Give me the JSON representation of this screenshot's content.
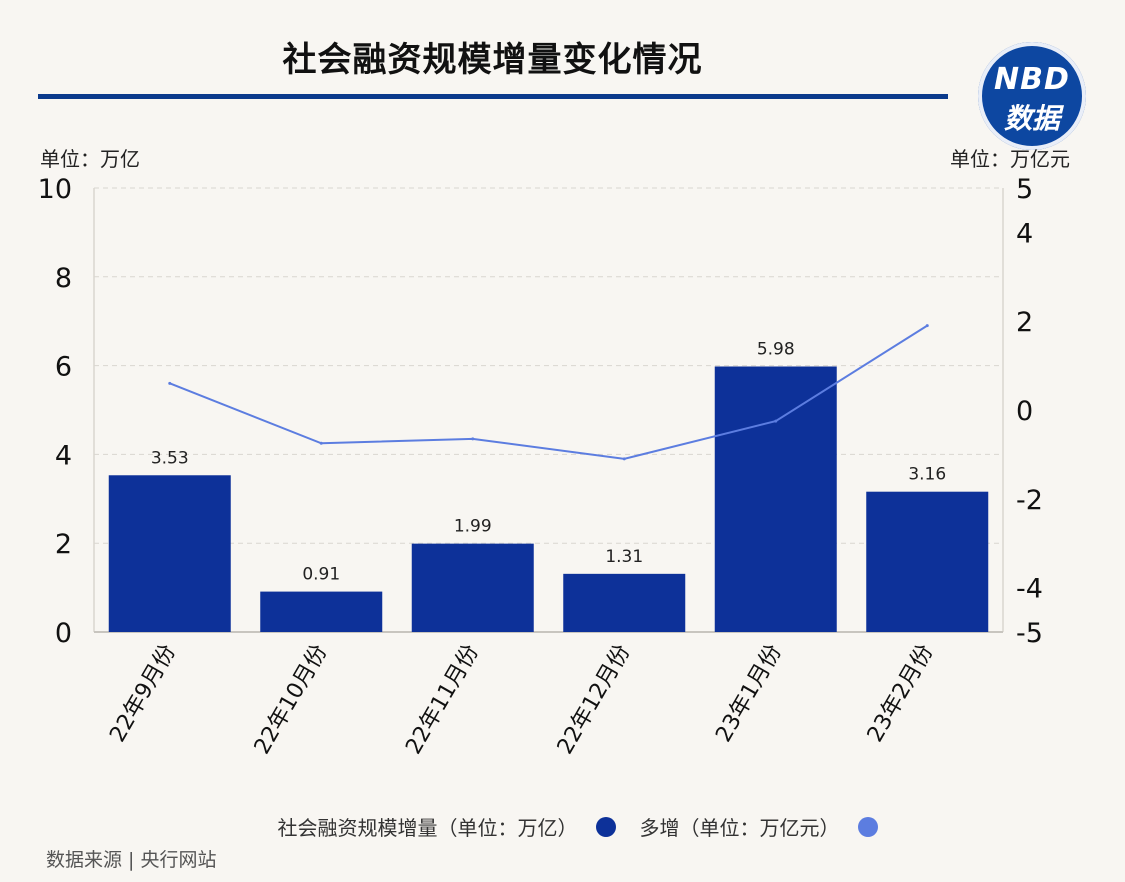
{
  "header": {
    "title": "社会融资规模增量变化情况",
    "logo_line1": "NBD",
    "logo_line2": "数据"
  },
  "units": {
    "left": "单位：万亿",
    "right": "单位：万亿元"
  },
  "legend": {
    "bar_label": "社会融资规模增量（单位：万亿）",
    "line_label": "多增（单位：万亿元）"
  },
  "footer": {
    "source": "数据来源 | 央行网站"
  },
  "colors": {
    "bar": "#0d3199",
    "line": "#5c7de0",
    "grid": "#d9d6d0",
    "background": "#f8f6f2",
    "title_rule": "#0b3a8c"
  },
  "chart_data": {
    "type": "bar",
    "categories": [
      "22年9月份",
      "22年10月份",
      "22年11月份",
      "22年12月份",
      "23年1月份",
      "23年2月份"
    ],
    "series": [
      {
        "name": "社会融资规模增量（单位：万亿）",
        "type": "bar",
        "axis": "left",
        "values": [
          3.53,
          0.91,
          1.99,
          1.31,
          5.98,
          3.16
        ],
        "data_labels": [
          "3.53",
          "0.91",
          "1.99",
          "1.31",
          "5.98",
          "3.16"
        ]
      },
      {
        "name": "多增（单位：万亿元）",
        "type": "line",
        "axis": "right",
        "values": [
          0.6,
          -0.75,
          -0.65,
          -1.1,
          -0.25,
          1.9
        ]
      }
    ],
    "y_left": {
      "ylim": [
        0,
        10
      ],
      "ticks": [
        0,
        2,
        4,
        6,
        8,
        10
      ],
      "tick_labels": [
        "0",
        "2",
        "4",
        "6",
        "8",
        "10"
      ]
    },
    "y_right": {
      "ylim": [
        -5,
        5
      ],
      "ticks": [
        -5,
        -4,
        -2,
        0,
        2,
        4,
        5
      ],
      "tick_labels": [
        "-5",
        "-4",
        "-2",
        "0",
        "2",
        "4",
        "5"
      ]
    },
    "grid": true
  }
}
